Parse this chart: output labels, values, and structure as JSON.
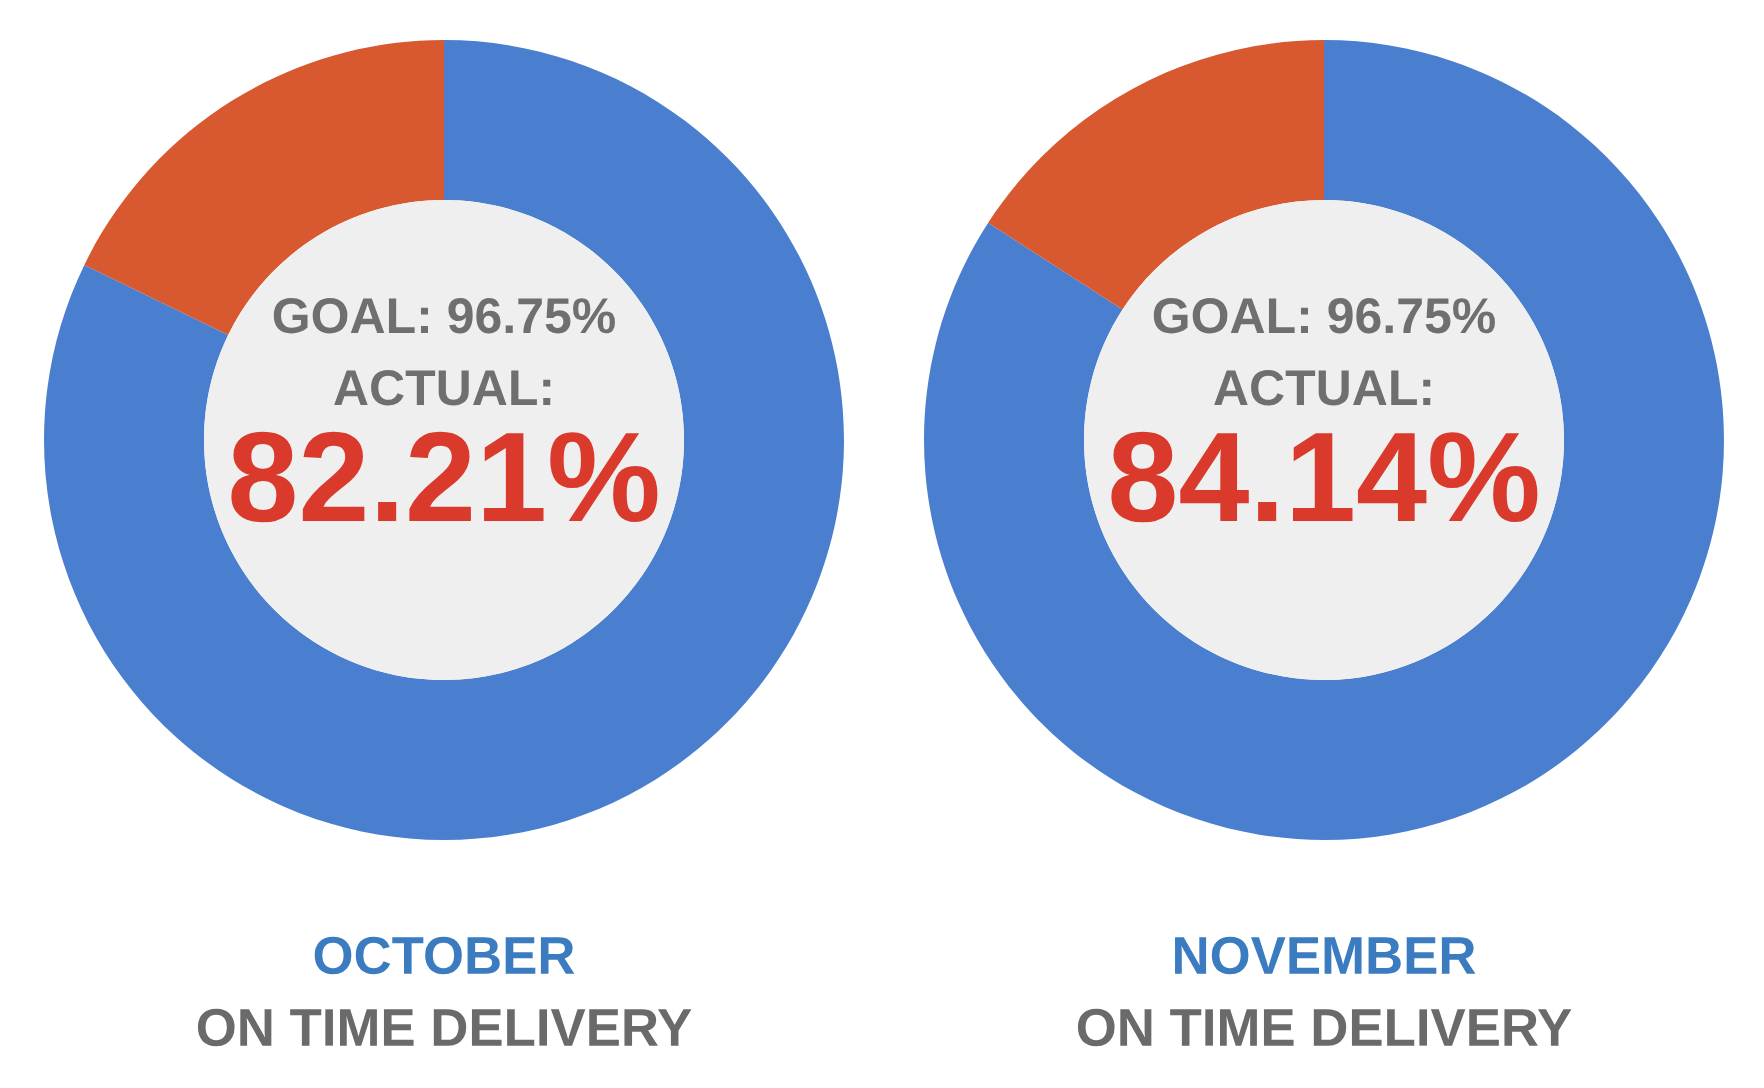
{
  "chart_data": [
    {
      "type": "donut",
      "title": "OCTOBER",
      "subtitle": "ON TIME DELIVERY",
      "categories": [
        null,
        null
      ],
      "values": [
        82.21,
        17.79
      ],
      "colors": [
        "#4a7fcf",
        "#d8582f"
      ],
      "annotations": [
        "GOAL: 96.75%",
        "ACTUAL:",
        "82.21%"
      ]
    },
    {
      "type": "donut",
      "title": "NOVEMBER",
      "subtitle": "ON TIME DELIVERY",
      "categories": [
        null,
        null
      ],
      "values": [
        84.14,
        15.86
      ],
      "colors": [
        "#4a7fcf",
        "#d8582f"
      ],
      "annotations": [
        "GOAL: 96.75%",
        "ACTUAL:",
        "84.14%"
      ]
    }
  ]
}
